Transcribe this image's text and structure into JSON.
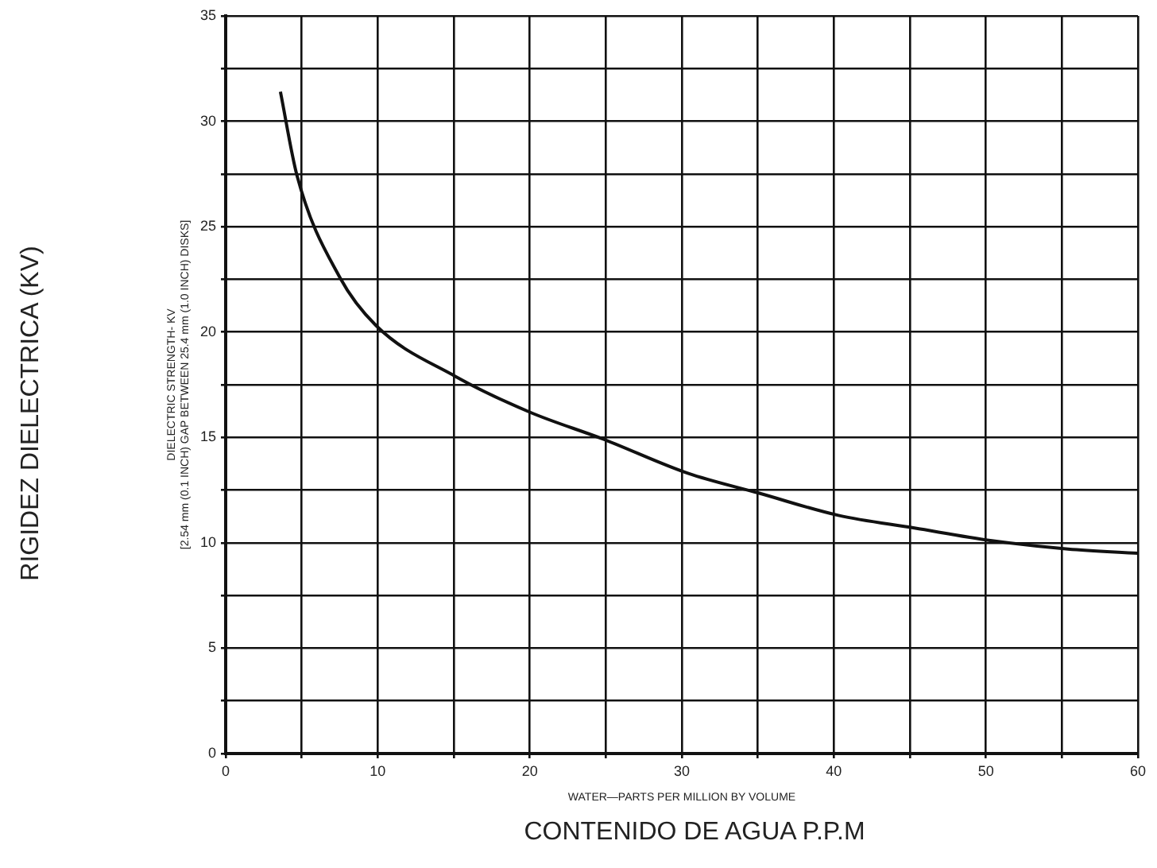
{
  "chart_data": {
    "type": "line",
    "xlabel": "WATER—PARTS PER MILLION BY VOLUME",
    "ylabel": "DIELECTRIC STRENGTH- KV",
    "annotations": [
      "[2.54 mm (0.1 INCH) GAP BETWEEN 25.4 mm (1.0 INCH) DISKS]",
      "RIGIDEZ DIELECTRICA (KV)",
      "CONTENIDO DE AGUA P.P.M"
    ],
    "x": [
      3.6,
      4.7,
      7.5,
      9.9,
      15.1,
      20,
      24.9,
      30.4,
      35.1,
      40.3,
      45.3,
      50.4,
      55.4,
      60
    ],
    "series": [
      {
        "color": "#111111",
        "values": [
          31.4,
          27.4,
          22.6,
          20.3,
          17.9,
          16.2,
          14.9,
          13.3,
          12.35,
          11.3,
          10.7,
          10.1,
          9.7,
          9.5
        ]
      }
    ],
    "xlim": [
      0,
      60
    ],
    "xticks": [
      0,
      {
        "value": 5,
        "label": null
      },
      10,
      {
        "value": 15,
        "label": null
      },
      20,
      {
        "value": 25,
        "label": null
      },
      30,
      {
        "value": 35,
        "label": null
      },
      40,
      {
        "value": 45,
        "label": null
      },
      50,
      {
        "value": 55,
        "label": null
      },
      60
    ],
    "ylim": [
      0,
      35
    ],
    "yticks": [
      0,
      {
        "value": 2.5,
        "label": null
      },
      5,
      {
        "value": 7.5,
        "label": null
      },
      10,
      {
        "value": 12.5,
        "label": null
      },
      15,
      {
        "value": 17.5,
        "label": null
      },
      20,
      {
        "value": 22.5,
        "label": null
      },
      25,
      {
        "value": 27.5,
        "label": null
      },
      30,
      {
        "value": 32.5,
        "label": null
      },
      35
    ],
    "grid": true,
    "legend": false,
    "marker": "none",
    "line_style": "solid"
  }
}
